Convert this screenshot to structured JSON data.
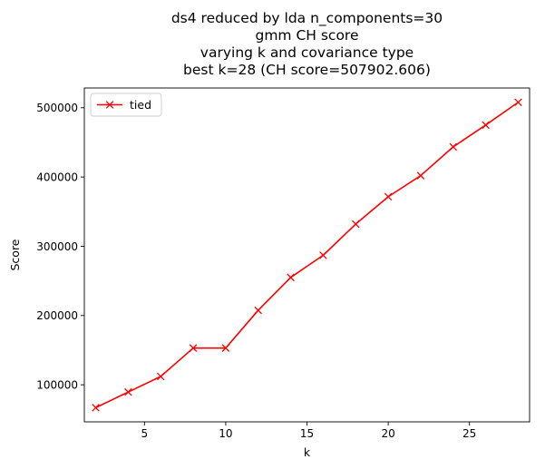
{
  "chart_data": {
    "type": "line",
    "title_lines": [
      "ds4 reduced by lda n_components=30",
      "gmm CH score",
      "varying k and covariance type",
      "best k=28 (CH score=507902.606)"
    ],
    "xlabel": "k",
    "ylabel": "Score",
    "xlim": [
      1.3,
      28.7
    ],
    "ylim": [
      46500,
      528500
    ],
    "xticks": [
      5,
      10,
      15,
      20,
      25
    ],
    "yticks": [
      100000,
      200000,
      300000,
      400000,
      500000
    ],
    "grid": false,
    "legend_position": "top-left",
    "series": [
      {
        "name": "tied",
        "color": "#ff0000",
        "marker": "x",
        "x": [
          2,
          4,
          6,
          8,
          10,
          12,
          14,
          16,
          18,
          20,
          22,
          24,
          26,
          28
        ],
        "y": [
          67000,
          89500,
          112000,
          153000,
          153000,
          207500,
          255000,
          287000,
          332000,
          371500,
          402000,
          443500,
          475000,
          507902.606
        ]
      }
    ]
  }
}
